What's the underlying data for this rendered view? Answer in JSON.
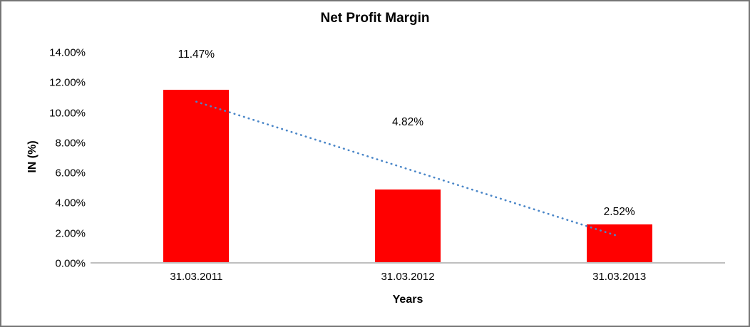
{
  "chart_data": {
    "type": "bar",
    "title": "Net Profit Margin",
    "xlabel": "Years",
    "ylabel": "IN (%)",
    "categories": [
      "31.03.2011",
      "31.03.2012",
      "31.03.2013"
    ],
    "values": [
      11.47,
      4.82,
      2.52
    ],
    "data_labels": [
      "11.47%",
      "4.82%",
      "2.52%"
    ],
    "ylim": [
      0,
      14
    ],
    "ytick_step": 2,
    "ytick_labels": [
      "0.00%",
      "2.00%",
      "4.00%",
      "6.00%",
      "8.00%",
      "10.00%",
      "12.00%",
      "14.00%"
    ],
    "bar_color": "#FF0000",
    "grid": "none",
    "legend": "none",
    "trendline": {
      "style": "dotted",
      "color": "#4A86C8",
      "endpoints_pct": [
        10.75,
        1.8
      ]
    }
  }
}
